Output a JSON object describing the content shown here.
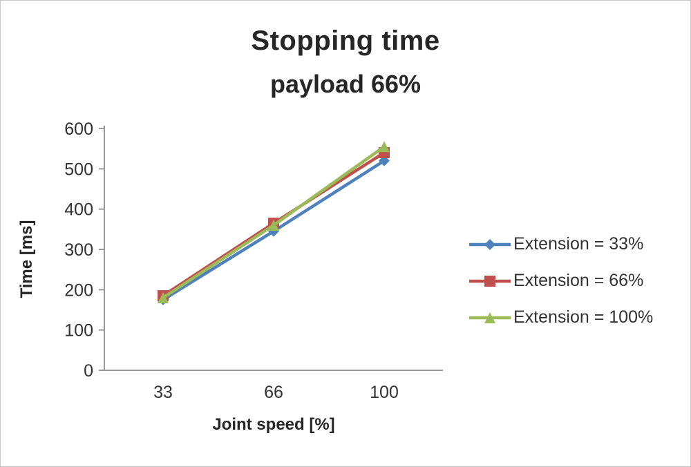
{
  "chart_data": {
    "type": "line",
    "title": "Stopping time",
    "subtitle": "payload 66%",
    "xlabel": "Joint speed [%]",
    "ylabel": "Time [ms]",
    "categories": [
      "33",
      "66",
      "100"
    ],
    "y_ticks": [
      0,
      100,
      200,
      300,
      400,
      500,
      600
    ],
    "ylim": [
      0,
      600
    ],
    "grid": false,
    "legend_position": "right",
    "series": [
      {
        "name": "Extension = 33%",
        "values": [
          175,
          345,
          520
        ],
        "color": "#4f81bd",
        "marker": "diamond"
      },
      {
        "name": "Extension = 66%",
        "values": [
          185,
          365,
          540
        ],
        "color": "#c0504d",
        "marker": "square"
      },
      {
        "name": "Extension = 100%",
        "values": [
          180,
          360,
          555
        ],
        "color": "#9bbb59",
        "marker": "triangle"
      }
    ]
  }
}
